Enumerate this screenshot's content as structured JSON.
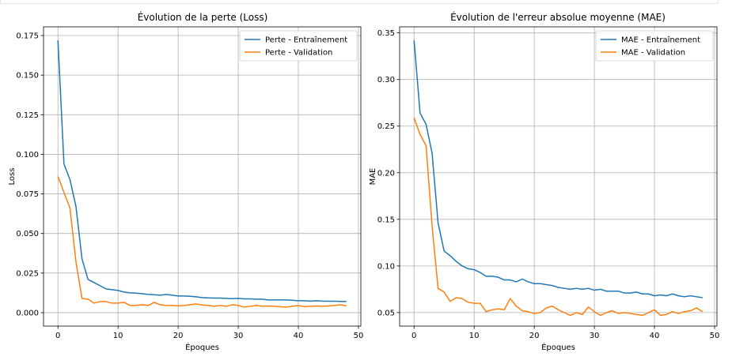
{
  "chart_data": [
    {
      "type": "line",
      "title": "Évolution de la perte (Loss)",
      "xlabel": "Époques",
      "ylabel": "Loss",
      "xlim": [
        -2.4,
        50.4
      ],
      "ylim": [
        -0.0085,
        0.1805
      ],
      "xticks": [
        0,
        10,
        20,
        30,
        40,
        50
      ],
      "yticks": [
        0.0,
        0.025,
        0.05,
        0.075,
        0.1,
        0.125,
        0.15,
        0.175
      ],
      "xtick_labels": [
        "0",
        "10",
        "20",
        "30",
        "40",
        "50"
      ],
      "ytick_labels": [
        "0.000",
        "0.025",
        "0.050",
        "0.075",
        "0.100",
        "0.125",
        "0.150",
        "0.175"
      ],
      "grid": true,
      "legend_position": "top-right",
      "x": [
        0,
        1,
        2,
        3,
        4,
        5,
        6,
        7,
        8,
        9,
        10,
        11,
        12,
        13,
        14,
        15,
        16,
        17,
        18,
        19,
        20,
        21,
        22,
        23,
        24,
        25,
        26,
        27,
        28,
        29,
        30,
        31,
        32,
        33,
        34,
        35,
        36,
        37,
        38,
        39,
        40,
        41,
        42,
        43,
        44,
        45,
        46,
        47,
        48
      ],
      "series": [
        {
          "name": "Perte - Entraînement",
          "color": "#1f77b4",
          "values": [
            0.172,
            0.094,
            0.084,
            0.067,
            0.034,
            0.021,
            0.019,
            0.017,
            0.015,
            0.0145,
            0.014,
            0.013,
            0.0125,
            0.0123,
            0.012,
            0.0115,
            0.0113,
            0.011,
            0.0115,
            0.011,
            0.0105,
            0.0105,
            0.0103,
            0.01,
            0.0095,
            0.0093,
            0.0092,
            0.0092,
            0.009,
            0.0088,
            0.009,
            0.0087,
            0.0087,
            0.0085,
            0.0085,
            0.008,
            0.008,
            0.008,
            0.008,
            0.0078,
            0.0075,
            0.0075,
            0.0073,
            0.0075,
            0.0073,
            0.0072,
            0.0072,
            0.0071,
            0.007
          ]
        },
        {
          "name": "Perte - Validation",
          "color": "#ff7f0e",
          "values": [
            0.086,
            0.076,
            0.066,
            0.032,
            0.009,
            0.0085,
            0.006,
            0.007,
            0.007,
            0.006,
            0.006,
            0.0065,
            0.0045,
            0.0045,
            0.005,
            0.0045,
            0.0065,
            0.005,
            0.0045,
            0.0045,
            0.0043,
            0.0045,
            0.005,
            0.0055,
            0.0048,
            0.0045,
            0.004,
            0.0045,
            0.004,
            0.005,
            0.0045,
            0.0035,
            0.004,
            0.0045,
            0.004,
            0.0042,
            0.004,
            0.0038,
            0.0035,
            0.004,
            0.0045,
            0.0038,
            0.004,
            0.0042,
            0.004,
            0.0042,
            0.0045,
            0.005,
            0.0043
          ]
        }
      ]
    },
    {
      "type": "line",
      "title": "Évolution de l'erreur absolue moyenne (MAE)",
      "xlabel": "Époques",
      "ylabel": "MAE",
      "xlim": [
        -2.4,
        50.4
      ],
      "ylim": [
        0.0355,
        0.3565
      ],
      "xticks": [
        0,
        10,
        20,
        30,
        40,
        50
      ],
      "yticks": [
        0.05,
        0.1,
        0.15,
        0.2,
        0.25,
        0.3,
        0.35
      ],
      "xtick_labels": [
        "0",
        "10",
        "20",
        "30",
        "40",
        "50"
      ],
      "ytick_labels": [
        "0.05",
        "0.10",
        "0.15",
        "0.20",
        "0.25",
        "0.30",
        "0.35"
      ],
      "grid": true,
      "legend_position": "top-right",
      "x": [
        0,
        1,
        2,
        3,
        4,
        5,
        6,
        7,
        8,
        9,
        10,
        11,
        12,
        13,
        14,
        15,
        16,
        17,
        18,
        19,
        20,
        21,
        22,
        23,
        24,
        25,
        26,
        27,
        28,
        29,
        30,
        31,
        32,
        33,
        34,
        35,
        36,
        37,
        38,
        39,
        40,
        41,
        42,
        43,
        44,
        45,
        46,
        47,
        48
      ],
      "series": [
        {
          "name": "MAE - Entraînement",
          "color": "#1f77b4",
          "values": [
            0.342,
            0.264,
            0.252,
            0.221,
            0.146,
            0.116,
            0.111,
            0.105,
            0.1,
            0.097,
            0.096,
            0.093,
            0.089,
            0.089,
            0.088,
            0.085,
            0.085,
            0.083,
            0.086,
            0.083,
            0.081,
            0.081,
            0.08,
            0.079,
            0.077,
            0.076,
            0.075,
            0.076,
            0.075,
            0.076,
            0.074,
            0.075,
            0.073,
            0.073,
            0.073,
            0.071,
            0.071,
            0.072,
            0.07,
            0.07,
            0.068,
            0.069,
            0.068,
            0.07,
            0.068,
            0.067,
            0.068,
            0.067,
            0.066
          ]
        },
        {
          "name": "MAE - Validation",
          "color": "#ff7f0e",
          "values": [
            0.259,
            0.241,
            0.229,
            0.143,
            0.076,
            0.072,
            0.062,
            0.066,
            0.065,
            0.061,
            0.06,
            0.06,
            0.051,
            0.053,
            0.054,
            0.053,
            0.065,
            0.057,
            0.052,
            0.051,
            0.049,
            0.05,
            0.055,
            0.057,
            0.053,
            0.05,
            0.047,
            0.05,
            0.048,
            0.056,
            0.051,
            0.047,
            0.05,
            0.052,
            0.049,
            0.05,
            0.049,
            0.048,
            0.047,
            0.05,
            0.053,
            0.047,
            0.048,
            0.051,
            0.049,
            0.051,
            0.052,
            0.055,
            0.051
          ]
        }
      ]
    }
  ]
}
